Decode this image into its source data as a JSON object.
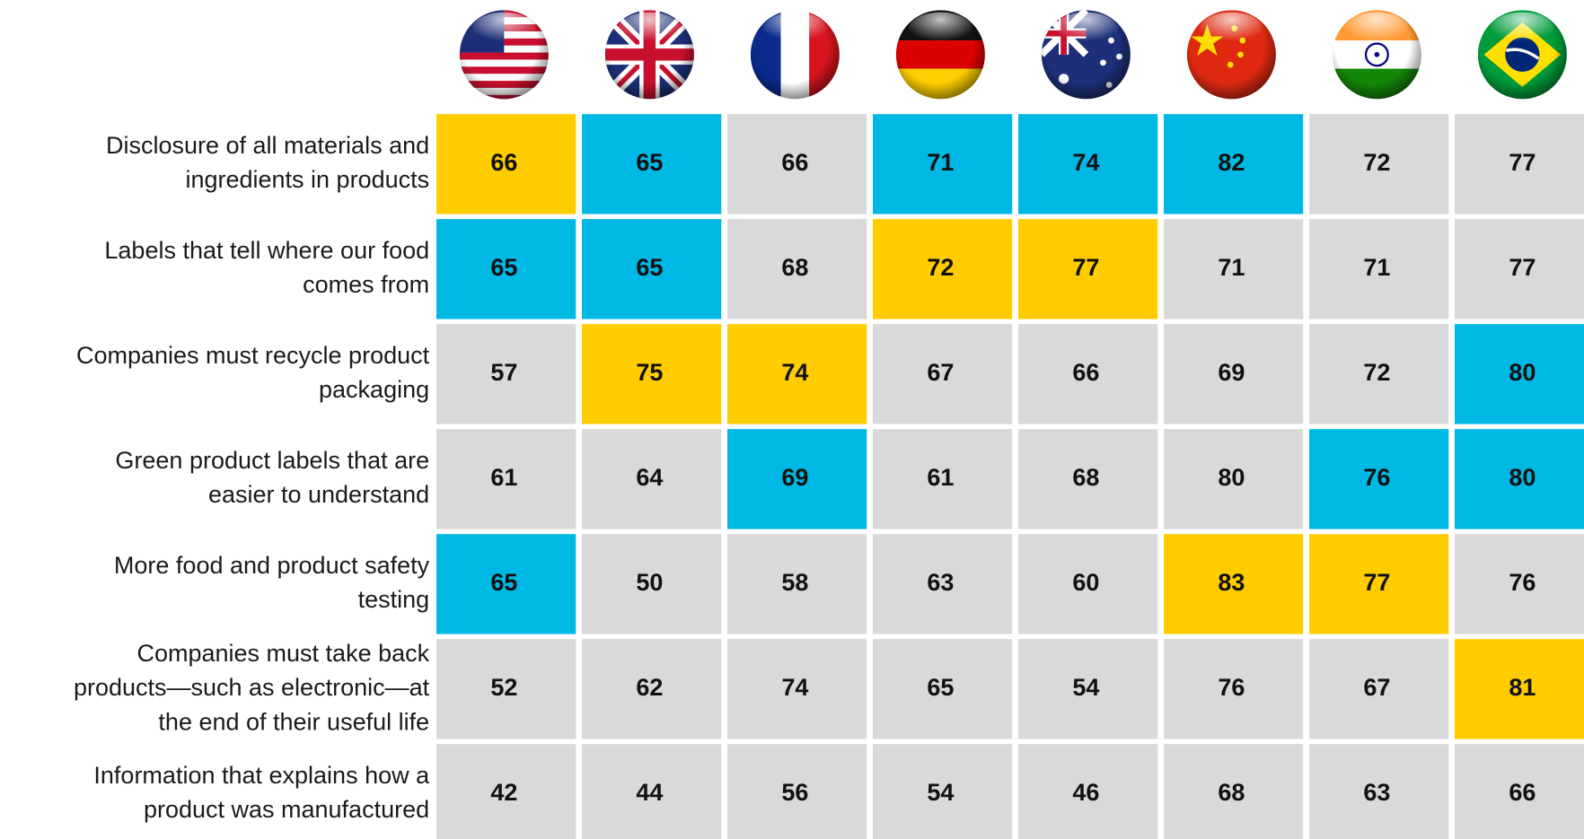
{
  "table": {
    "rows": [
      {
        "label": [
          "Disclosure of all materials and",
          "ingredients in products"
        ],
        "values": [
          66,
          65,
          66,
          71,
          74,
          82,
          72,
          77
        ]
      },
      {
        "label": [
          "Labels that tell where our food",
          "comes from"
        ],
        "values": [
          65,
          65,
          68,
          72,
          77,
          71,
          71,
          77
        ]
      },
      {
        "label": [
          "Companies must recycle product",
          "packaging"
        ],
        "values": [
          57,
          75,
          74,
          67,
          66,
          69,
          72,
          80
        ]
      },
      {
        "label": [
          "Green product labels that are",
          "easier to understand"
        ],
        "values": [
          61,
          64,
          69,
          61,
          68,
          80,
          76,
          80
        ]
      },
      {
        "label": [
          "More food and product safety",
          "testing"
        ],
        "values": [
          65,
          50,
          58,
          63,
          60,
          83,
          77,
          76
        ]
      },
      {
        "label": [
          "Companies must take back",
          "products—such as electronic—at",
          "the end of their useful life"
        ],
        "values": [
          52,
          62,
          74,
          65,
          54,
          76,
          67,
          81
        ]
      },
      {
        "label": [
          "Information that explains how a",
          "product was manufactured"
        ],
        "values": [
          42,
          44,
          56,
          54,
          46,
          68,
          63,
          66
        ]
      }
    ],
    "cell_colors": [
      [
        "#ffcc00",
        "#00b8e4",
        "#d9d9d9",
        "#00b8e4",
        "#00b8e4",
        "#00b8e4",
        "#d9d9d9",
        "#d9d9d9"
      ],
      [
        "#00b8e4",
        "#00b8e4",
        "#d9d9d9",
        "#ffcc00",
        "#ffcc00",
        "#d9d9d9",
        "#d9d9d9",
        "#d9d9d9"
      ],
      [
        "#d9d9d9",
        "#ffcc00",
        "#ffcc00",
        "#d9d9d9",
        "#d9d9d9",
        "#d9d9d9",
        "#d9d9d9",
        "#00b8e4"
      ],
      [
        "#d9d9d9",
        "#d9d9d9",
        "#00b8e4",
        "#d9d9d9",
        "#d9d9d9",
        "#d9d9d9",
        "#00b8e4",
        "#00b8e4"
      ],
      [
        "#00b8e4",
        "#d9d9d9",
        "#d9d9d9",
        "#d9d9d9",
        "#d9d9d9",
        "#ffcc00",
        "#ffcc00",
        "#d9d9d9"
      ],
      [
        "#d9d9d9",
        "#d9d9d9",
        "#d9d9d9",
        "#d9d9d9",
        "#d9d9d9",
        "#d9d9d9",
        "#d9d9d9",
        "#ffcc00"
      ],
      [
        "#d9d9d9",
        "#d9d9d9",
        "#d9d9d9",
        "#d9d9d9",
        "#d9d9d9",
        "#d9d9d9",
        "#d9d9d9",
        "#d9d9d9"
      ]
    ]
  }
}
